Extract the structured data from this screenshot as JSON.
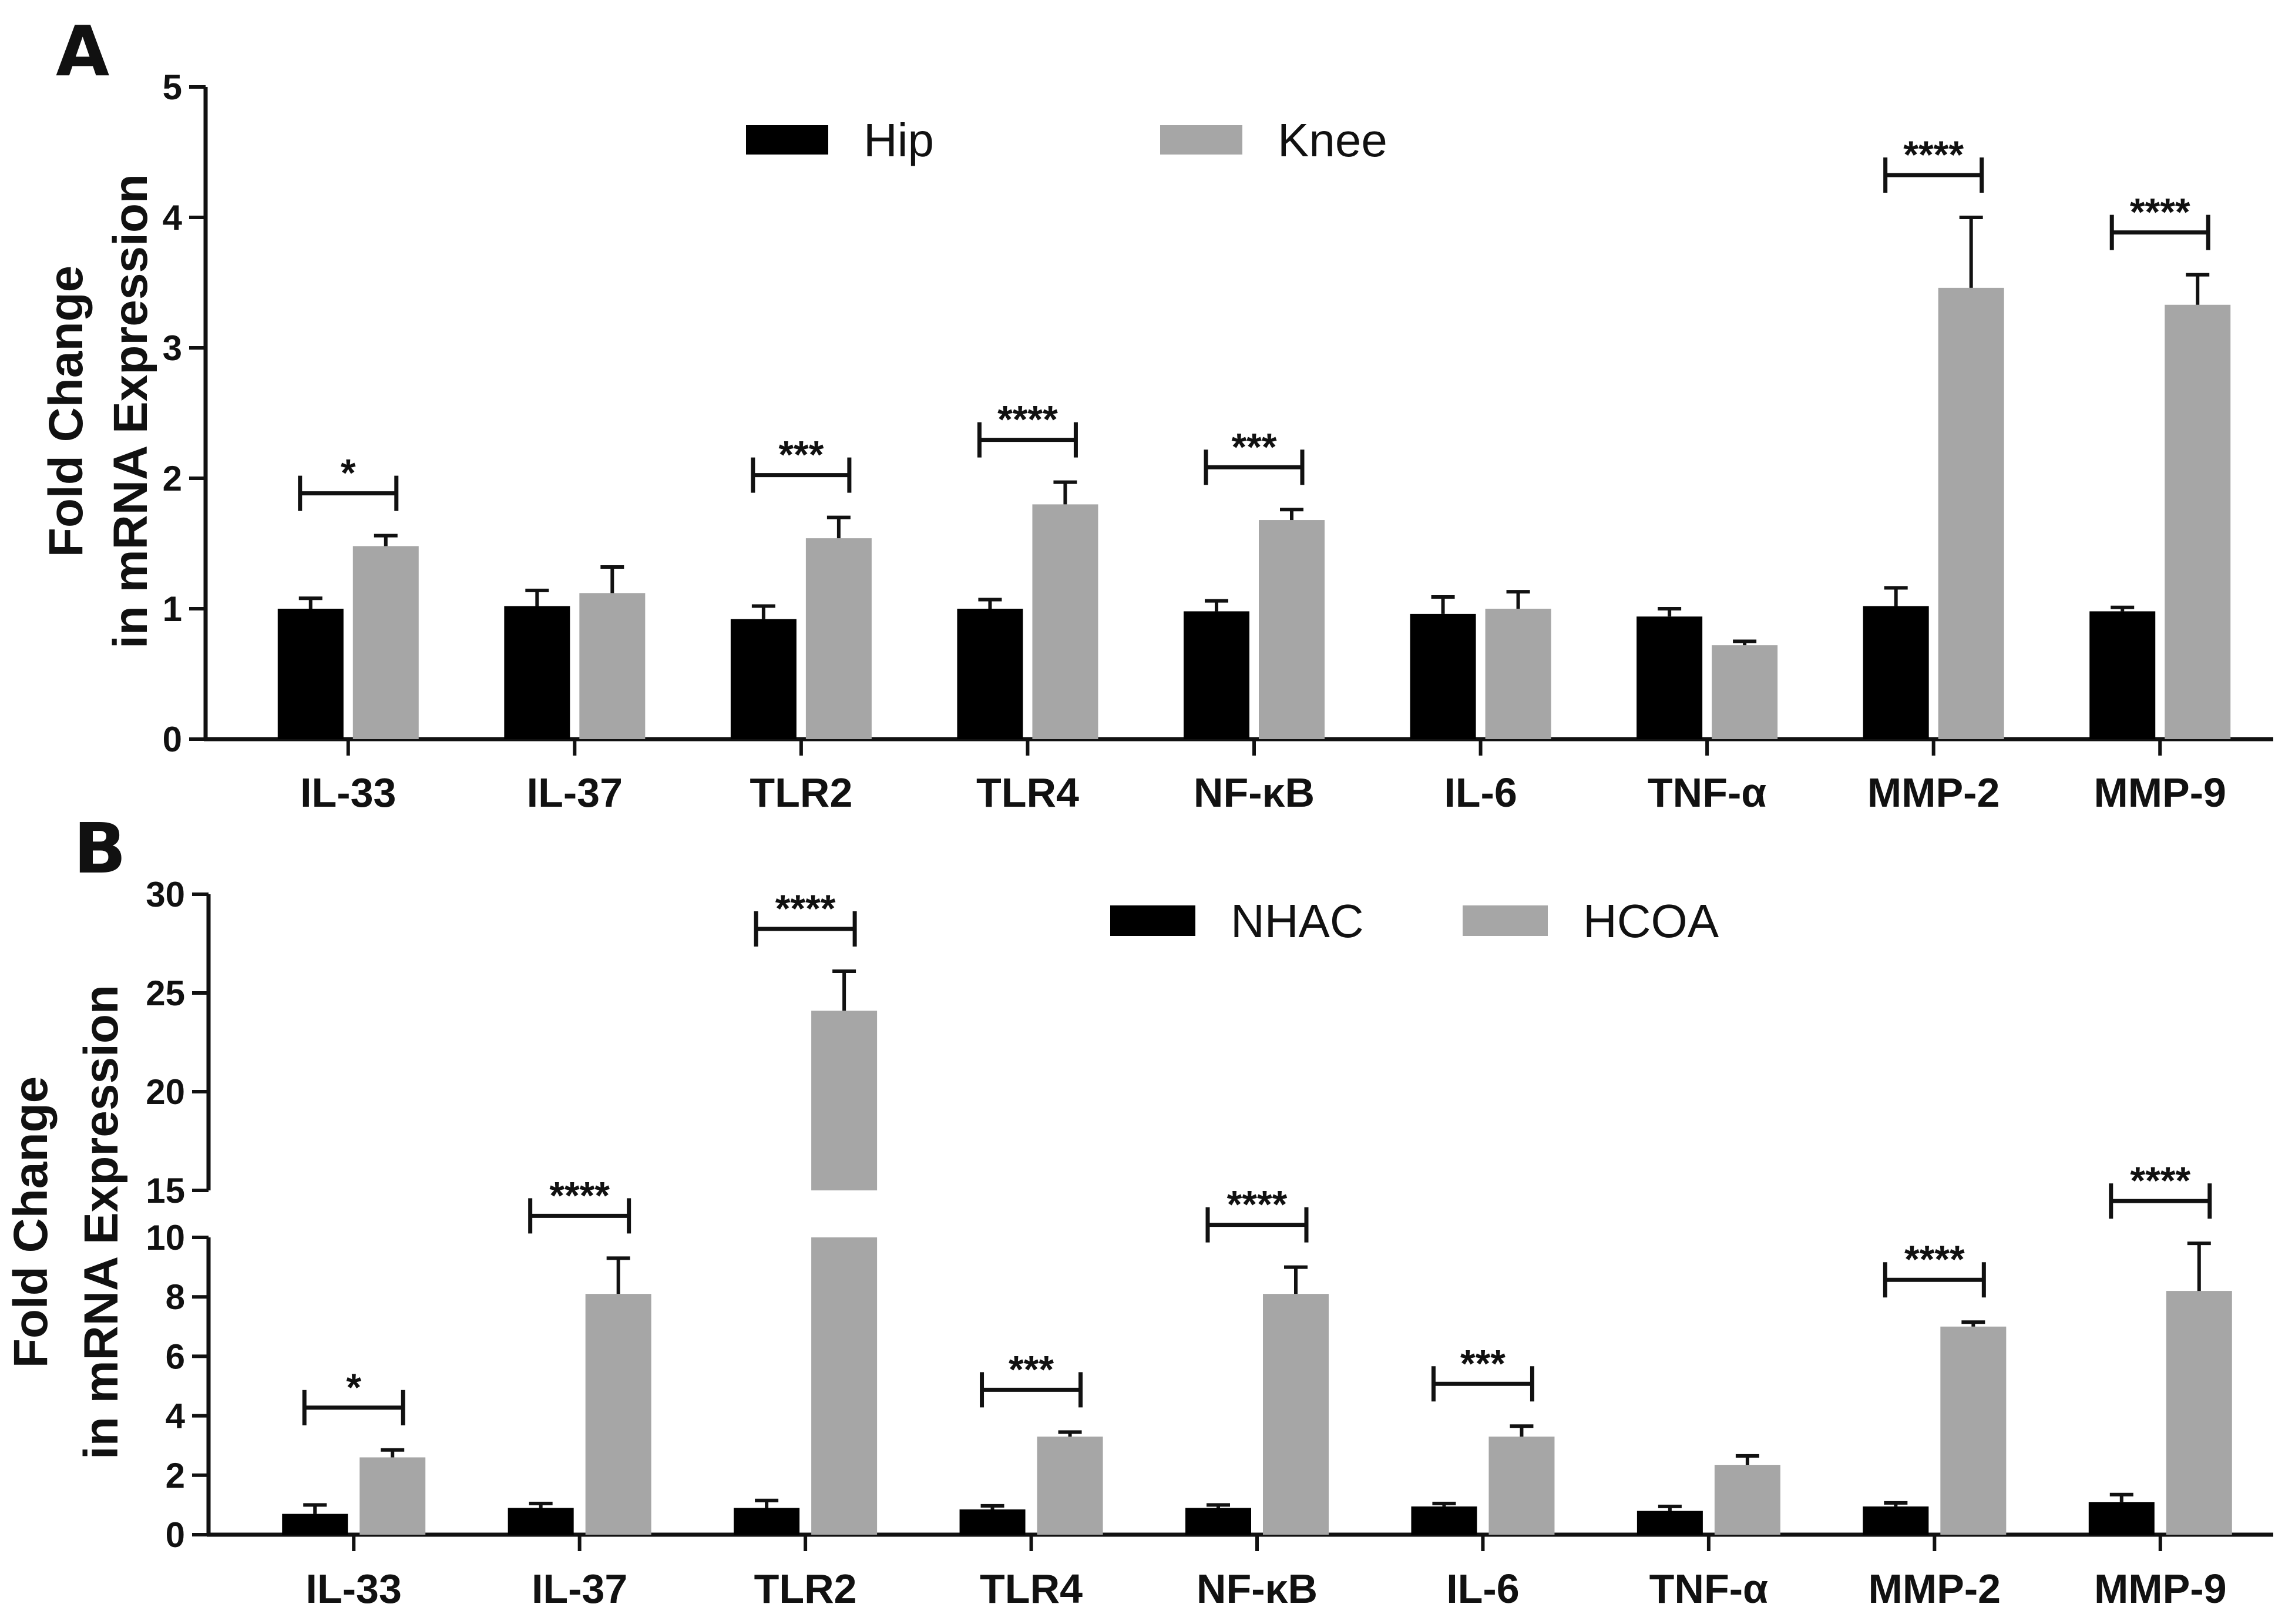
{
  "chart_data": [
    {
      "panel": "A",
      "type": "bar",
      "ylabel": [
        "Fold Change",
        "in mRNA Expression"
      ],
      "ylim": [
        0,
        5
      ],
      "yticks": [
        0,
        1,
        2,
        3,
        4,
        5
      ],
      "categories": [
        "IL-33",
        "IL-37",
        "TLR2",
        "TLR4",
        "NF-κB",
        "IL-6",
        "TNF-α",
        "MMP-2",
        "MMP-9"
      ],
      "series": [
        {
          "name": "Hip",
          "color": "#000000",
          "values": [
            1.0,
            1.02,
            0.92,
            1.0,
            0.98,
            0.96,
            0.94,
            1.02,
            0.98
          ],
          "errors": [
            0.08,
            0.12,
            0.1,
            0.07,
            0.08,
            0.13,
            0.06,
            0.14,
            0.03
          ]
        },
        {
          "name": "Knee",
          "color": "#a6a6a6",
          "values": [
            1.48,
            1.12,
            1.54,
            1.8,
            1.68,
            1.0,
            0.72,
            3.46,
            3.33
          ],
          "errors": [
            0.08,
            0.2,
            0.16,
            0.17,
            0.08,
            0.13,
            0.03,
            0.54,
            0.23
          ]
        }
      ],
      "significance": [
        "*",
        "",
        "***",
        "****",
        "***",
        "",
        "",
        "****",
        "****"
      ],
      "legend_position": "top-center"
    },
    {
      "panel": "B",
      "type": "bar",
      "ylabel": [
        "Fold Change",
        "in mRNA Expression"
      ],
      "ylim": [
        0,
        30
      ],
      "axis_break": [
        10,
        15
      ],
      "yticks": [
        0,
        2,
        4,
        6,
        8,
        10,
        15,
        20,
        25,
        30
      ],
      "categories": [
        "IL-33",
        "IL-37",
        "TLR2",
        "TLR4",
        "NF-κB",
        "IL-6",
        "TNF-α",
        "MMP-2",
        "MMP-9"
      ],
      "series": [
        {
          "name": "NHAC",
          "color": "#000000",
          "values": [
            0.7,
            0.9,
            0.9,
            0.85,
            0.9,
            0.95,
            0.8,
            0.95,
            1.1
          ],
          "errors": [
            0.3,
            0.15,
            0.25,
            0.12,
            0.1,
            0.1,
            0.15,
            0.12,
            0.25
          ]
        },
        {
          "name": "HCOA",
          "color": "#a6a6a6",
          "values": [
            2.6,
            8.1,
            24.1,
            3.3,
            8.1,
            3.3,
            2.35,
            7.0,
            8.2
          ],
          "errors": [
            0.25,
            1.2,
            2.0,
            0.15,
            0.9,
            0.35,
            0.3,
            0.15,
            1.6
          ]
        }
      ],
      "significance": [
        "*",
        "****",
        "****",
        "***",
        "****",
        "***",
        "",
        "****",
        "****"
      ],
      "legend_position": "top-center"
    }
  ]
}
